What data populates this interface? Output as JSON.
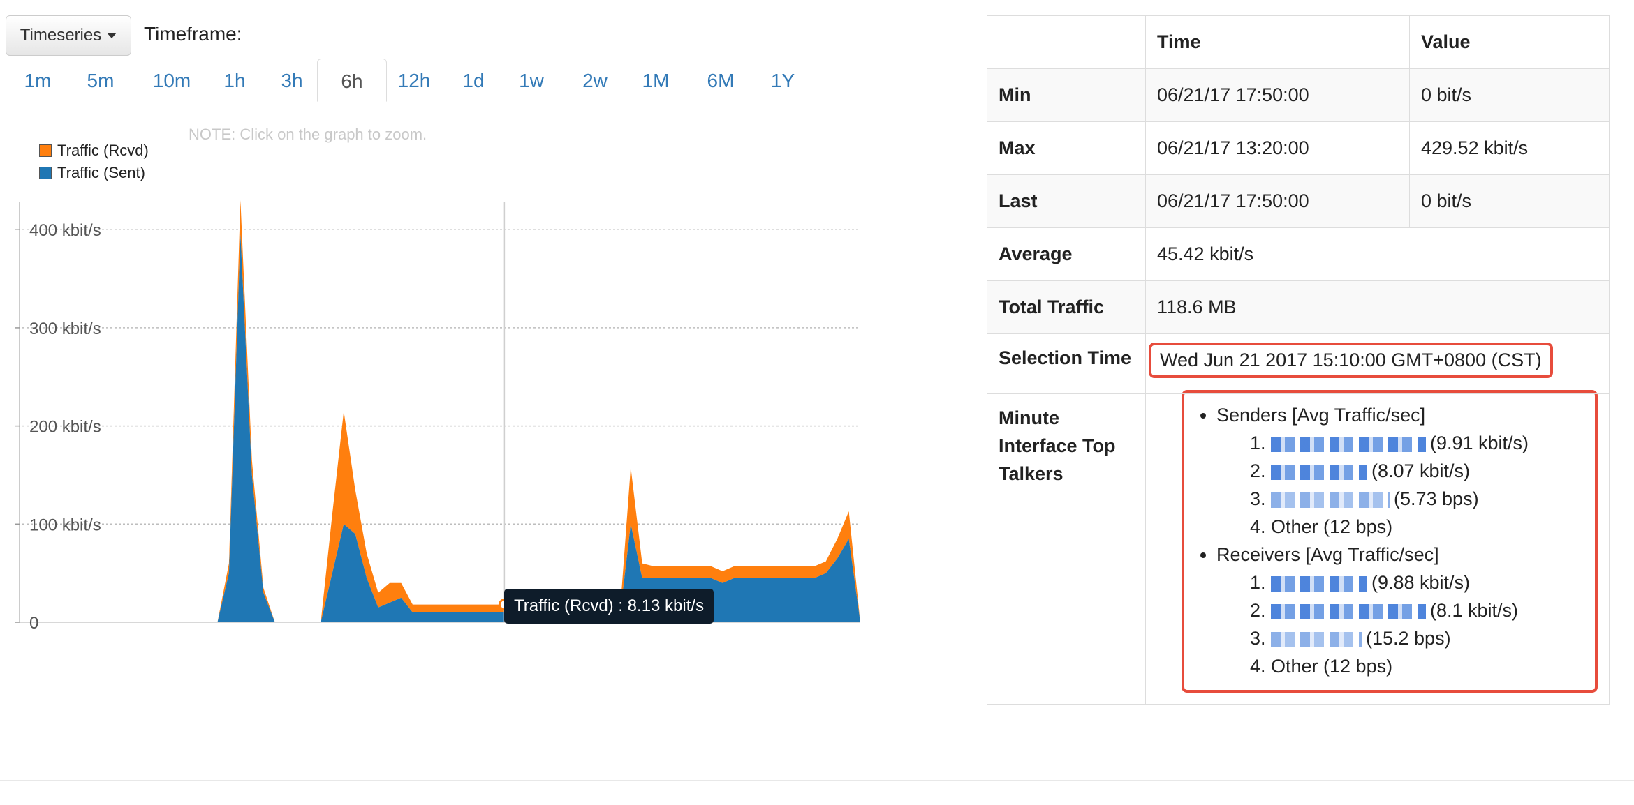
{
  "toolbar": {
    "view_button": "Timeseries",
    "timeframe_label": "Timeframe:",
    "timeframes": [
      "1m",
      "5m",
      "10m",
      "1h",
      "3h",
      "6h",
      "12h",
      "1d",
      "1w",
      "2w",
      "1M",
      "6M",
      "1Y"
    ],
    "active_timeframe": "6h"
  },
  "note": "NOTE: Click on the graph to zoom.",
  "legend": [
    {
      "label": "Traffic (Rcvd)",
      "color": "#ff7f0e"
    },
    {
      "label": "Traffic (Sent)",
      "color": "#1f77b4"
    }
  ],
  "tooltip": "Traffic (Rcvd) : 8.13 kbit/s",
  "chart_data": {
    "type": "area",
    "stacked": true,
    "x": [
      0,
      1,
      2,
      3,
      4,
      5,
      6,
      7,
      8,
      9,
      10,
      11,
      12,
      13,
      14,
      15,
      16,
      17,
      18,
      19,
      20,
      21,
      22,
      23,
      24,
      25,
      26,
      27,
      28,
      29,
      30,
      31,
      32,
      33,
      34,
      35,
      36,
      37,
      38,
      39,
      40,
      41,
      42,
      43,
      44,
      45,
      46,
      47,
      48,
      49,
      50,
      51,
      52,
      53,
      54,
      55,
      56,
      57,
      58,
      59,
      60,
      61,
      62,
      63,
      64,
      65,
      66,
      67,
      68,
      69,
      70,
      71,
      72,
      73
    ],
    "yticks": [
      "0",
      "100 kbit/s",
      "200 kbit/s",
      "300 kbit/s",
      "400 kbit/s"
    ],
    "ylim": [
      0,
      435
    ],
    "series": [
      {
        "name": "Traffic (Sent)",
        "color": "#1f77b4",
        "values": [
          0,
          0,
          0,
          0,
          0,
          0,
          0,
          0,
          0,
          0,
          0,
          0,
          0,
          0,
          0,
          0,
          0,
          0,
          50,
          395,
          150,
          30,
          0,
          0,
          0,
          0,
          0,
          50,
          100,
          90,
          45,
          15,
          20,
          25,
          10,
          10,
          10,
          10,
          10,
          10,
          10,
          10,
          10,
          10,
          10,
          10,
          10,
          10,
          10,
          10,
          10,
          10,
          0,
          100,
          45,
          45,
          45,
          45,
          45,
          45,
          45,
          40,
          45,
          45,
          45,
          45,
          45,
          45,
          45,
          45,
          50,
          65,
          85,
          0
        ]
      },
      {
        "name": "Traffic (Rcvd)",
        "color": "#ff7f0e",
        "values": [
          0,
          0,
          0,
          0,
          0,
          0,
          0,
          0,
          0,
          0,
          0,
          0,
          0,
          0,
          0,
          0,
          0,
          0,
          10,
          35,
          15,
          5,
          0,
          0,
          0,
          0,
          0,
          60,
          115,
          45,
          25,
          15,
          20,
          15,
          8,
          8,
          8,
          8,
          8,
          8,
          8,
          8,
          8,
          8,
          8,
          8,
          8,
          8,
          8,
          8,
          8,
          8,
          0,
          58,
          15,
          12,
          12,
          12,
          12,
          12,
          12,
          12,
          12,
          12,
          12,
          12,
          12,
          12,
          12,
          12,
          12,
          20,
          28,
          0
        ]
      }
    ],
    "cursor_x": 42,
    "grid": true
  },
  "stats": {
    "headers": [
      "",
      "Time",
      "Value"
    ],
    "rows": [
      {
        "label": "Min",
        "time": "06/21/17 17:50:00",
        "value": "0 bit/s"
      },
      {
        "label": "Max",
        "time": "06/21/17 13:20:00",
        "value": "429.52 kbit/s"
      },
      {
        "label": "Last",
        "time": "06/21/17 17:50:00",
        "value": "0 bit/s"
      }
    ],
    "average_label": "Average",
    "average_value": "45.42 kbit/s",
    "total_label": "Total Traffic",
    "total_value": "118.6 MB",
    "selection_label": "Selection Time",
    "selection_value": "Wed Jun 21 2017 15:10:00 GMT+0800 (CST)",
    "talkers_label": "Minute Interface Top Talkers",
    "senders_title": "Senders [Avg Traffic/sec]",
    "senders": [
      "(9.91 kbit/s)",
      "(8.07 kbit/s)",
      "(5.73 bps)",
      "Other (12 bps)"
    ],
    "receivers_title": "Receivers [Avg Traffic/sec]",
    "receivers": [
      "(9.88 kbit/s)",
      "(8.1 kbit/s)",
      "(15.2 bps)",
      "Other (12 bps)"
    ]
  }
}
